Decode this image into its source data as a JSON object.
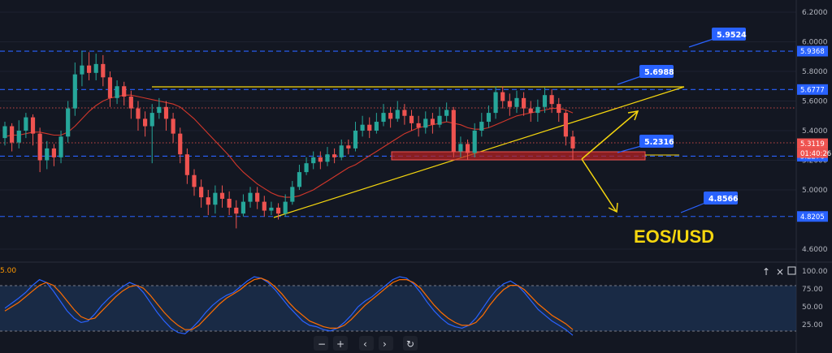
{
  "chart_data": [
    {
      "type": "candlestick",
      "title": "EOS/USD",
      "ylim": [
        4.53,
        6.25
      ],
      "y_ticks": [
        "6.2000",
        "6.0000",
        "5.8000",
        "5.6000",
        "5.4000",
        "5.2000",
        "5.0000",
        "4.6000"
      ],
      "price_badges": [
        {
          "value": "5.9368",
          "color": "#2962ff"
        },
        {
          "value": "5.6777",
          "color": "#2962ff"
        },
        {
          "value": "5.3119",
          "color": "#ef5350"
        },
        {
          "value": "5.2276",
          "color": "#2962ff"
        },
        {
          "value": "4.8205",
          "color": "#2962ff"
        }
      ],
      "countdown": "01:40:26",
      "callouts": [
        "5.9524",
        "5.6988",
        "5.2316",
        "4.8566"
      ],
      "horizontal_levels": [
        5.9368,
        5.6777,
        5.2276,
        4.8205
      ],
      "resistance_line": 5.6777,
      "candles": [
        [
          5.35,
          5.43,
          5.46,
          5.3
        ],
        [
          5.43,
          5.32,
          5.45,
          5.26
        ],
        [
          5.32,
          5.4,
          5.47,
          5.28
        ],
        [
          5.4,
          5.49,
          5.52,
          5.35
        ],
        [
          5.49,
          5.38,
          5.51,
          5.3
        ],
        [
          5.38,
          5.2,
          5.42,
          5.12
        ],
        [
          5.2,
          5.28,
          5.33,
          5.14
        ],
        [
          5.28,
          5.22,
          5.31,
          5.16
        ],
        [
          5.22,
          5.36,
          5.4,
          5.18
        ],
        [
          5.36,
          5.55,
          5.6,
          5.32
        ],
        [
          5.55,
          5.78,
          5.86,
          5.5
        ],
        [
          5.78,
          5.84,
          5.94,
          5.7
        ],
        [
          5.84,
          5.79,
          5.93,
          5.74
        ],
        [
          5.79,
          5.85,
          5.92,
          5.74
        ],
        [
          5.85,
          5.76,
          5.91,
          5.7
        ],
        [
          5.76,
          5.62,
          5.8,
          5.56
        ],
        [
          5.62,
          5.7,
          5.74,
          5.58
        ],
        [
          5.7,
          5.63,
          5.73,
          5.57
        ],
        [
          5.63,
          5.55,
          5.67,
          5.48
        ],
        [
          5.55,
          5.48,
          5.6,
          5.4
        ],
        [
          5.48,
          5.43,
          5.53,
          5.36
        ],
        [
          5.43,
          5.52,
          5.58,
          5.18
        ],
        [
          5.52,
          5.56,
          5.62,
          5.48
        ],
        [
          5.56,
          5.48,
          5.6,
          5.4
        ],
        [
          5.48,
          5.38,
          5.52,
          5.32
        ],
        [
          5.38,
          5.24,
          5.42,
          5.18
        ],
        [
          5.24,
          5.1,
          5.28,
          5.04
        ],
        [
          5.1,
          5.02,
          5.14,
          4.96
        ],
        [
          5.02,
          4.95,
          5.07,
          4.88
        ],
        [
          4.95,
          4.9,
          5.0,
          4.83
        ],
        [
          4.9,
          4.98,
          5.03,
          4.84
        ],
        [
          4.98,
          4.94,
          5.03,
          4.88
        ],
        [
          4.94,
          4.88,
          4.99,
          4.83
        ],
        [
          4.88,
          4.84,
          4.93,
          4.74
        ],
        [
          4.84,
          4.92,
          4.97,
          4.82
        ],
        [
          4.92,
          4.98,
          5.02,
          4.88
        ],
        [
          4.98,
          4.92,
          5.02,
          4.87
        ],
        [
          4.92,
          4.86,
          4.96,
          4.82
        ],
        [
          4.86,
          4.88,
          4.92,
          4.83
        ],
        [
          4.88,
          4.84,
          4.91,
          4.8
        ],
        [
          4.84,
          4.92,
          4.97,
          4.82
        ],
        [
          4.92,
          5.02,
          5.06,
          4.9
        ],
        [
          5.02,
          5.12,
          5.17,
          5.0
        ],
        [
          5.12,
          5.18,
          5.22,
          5.1
        ],
        [
          5.18,
          5.22,
          5.26,
          5.14
        ],
        [
          5.22,
          5.19,
          5.26,
          5.14
        ],
        [
          5.19,
          5.24,
          5.29,
          5.16
        ],
        [
          5.24,
          5.22,
          5.28,
          5.18
        ],
        [
          5.22,
          5.3,
          5.34,
          5.2
        ],
        [
          5.3,
          5.28,
          5.34,
          5.24
        ],
        [
          5.28,
          5.4,
          5.46,
          5.26
        ],
        [
          5.4,
          5.44,
          5.5,
          5.36
        ],
        [
          5.44,
          5.4,
          5.49,
          5.35
        ],
        [
          5.4,
          5.46,
          5.52,
          5.38
        ],
        [
          5.46,
          5.52,
          5.58,
          5.43
        ],
        [
          5.52,
          5.48,
          5.56,
          5.42
        ],
        [
          5.48,
          5.54,
          5.6,
          5.46
        ],
        [
          5.54,
          5.5,
          5.58,
          5.44
        ],
        [
          5.5,
          5.45,
          5.54,
          5.4
        ],
        [
          5.45,
          5.42,
          5.5,
          5.36
        ],
        [
          5.42,
          5.48,
          5.53,
          5.38
        ],
        [
          5.48,
          5.44,
          5.52,
          5.38
        ],
        [
          5.44,
          5.5,
          5.56,
          5.42
        ],
        [
          5.5,
          5.54,
          5.59,
          5.46
        ],
        [
          5.54,
          5.26,
          5.56,
          5.22
        ],
        [
          5.26,
          5.31,
          5.36,
          5.22
        ],
        [
          5.31,
          5.25,
          5.34,
          5.2
        ],
        [
          5.25,
          5.4,
          5.45,
          5.22
        ],
        [
          5.4,
          5.46,
          5.52,
          5.36
        ],
        [
          5.46,
          5.52,
          5.57,
          5.42
        ],
        [
          5.52,
          5.66,
          5.7,
          5.48
        ],
        [
          5.66,
          5.6,
          5.7,
          5.55
        ],
        [
          5.6,
          5.56,
          5.65,
          5.5
        ],
        [
          5.56,
          5.62,
          5.67,
          5.52
        ],
        [
          5.62,
          5.55,
          5.66,
          5.5
        ],
        [
          5.55,
          5.52,
          5.6,
          5.46
        ],
        [
          5.52,
          5.56,
          5.61,
          5.46
        ],
        [
          5.56,
          5.64,
          5.69,
          5.52
        ],
        [
          5.64,
          5.58,
          5.68,
          5.52
        ],
        [
          5.58,
          5.52,
          5.62,
          5.46
        ],
        [
          5.52,
          5.36,
          5.54,
          5.3
        ],
        [
          5.36,
          5.28,
          5.4,
          5.2
        ]
      ],
      "sma": [
        5.36,
        5.37,
        5.37,
        5.38,
        5.39,
        5.39,
        5.38,
        5.37,
        5.37,
        5.39,
        5.43,
        5.48,
        5.53,
        5.57,
        5.6,
        5.62,
        5.63,
        5.64,
        5.64,
        5.63,
        5.62,
        5.61,
        5.6,
        5.59,
        5.58,
        5.56,
        5.52,
        5.48,
        5.43,
        5.38,
        5.33,
        5.28,
        5.23,
        5.17,
        5.12,
        5.08,
        5.04,
        5.01,
        4.98,
        4.96,
        4.95,
        4.95,
        4.96,
        4.98,
        5.0,
        5.03,
        5.06,
        5.09,
        5.12,
        5.15,
        5.17,
        5.2,
        5.23,
        5.26,
        5.29,
        5.32,
        5.35,
        5.38,
        5.4,
        5.42,
        5.43,
        5.44,
        5.45,
        5.46,
        5.45,
        5.44,
        5.42,
        5.41,
        5.41,
        5.42,
        5.44,
        5.46,
        5.48,
        5.5,
        5.51,
        5.52,
        5.53,
        5.54,
        5.55,
        5.55,
        5.54,
        5.52
      ]
    },
    {
      "type": "line",
      "indicator_left_label": "5.00",
      "ylim": [
        0,
        100
      ],
      "y_ticks": [
        "100.00",
        "75.00",
        "50.00",
        "25.00"
      ],
      "bands": [
        80,
        20
      ],
      "series": [
        {
          "color": "#2962ff",
          "values": [
            48,
            55,
            62,
            70,
            80,
            88,
            84,
            72,
            58,
            44,
            34,
            28,
            30,
            40,
            52,
            62,
            70,
            78,
            84,
            80,
            70,
            56,
            42,
            30,
            20,
            14,
            12,
            20,
            30,
            42,
            52,
            60,
            66,
            70,
            78,
            86,
            92,
            90,
            84,
            74,
            62,
            50,
            40,
            30,
            24,
            22,
            18,
            16,
            20,
            28,
            38,
            50,
            58,
            64,
            72,
            80,
            88,
            92,
            90,
            82,
            70,
            56,
            44,
            34,
            26,
            22,
            20,
            24,
            34,
            48,
            62,
            74,
            82,
            86,
            80,
            70,
            58,
            46,
            38,
            30,
            24,
            18,
            10
          ]
        },
        {
          "color": "#ff6d00",
          "values": [
            44,
            50,
            56,
            64,
            72,
            80,
            84,
            80,
            70,
            58,
            46,
            36,
            32,
            34,
            44,
            54,
            64,
            72,
            78,
            80,
            76,
            66,
            54,
            42,
            32,
            24,
            18,
            18,
            24,
            34,
            44,
            54,
            62,
            68,
            74,
            82,
            88,
            90,
            86,
            78,
            68,
            56,
            46,
            38,
            30,
            26,
            22,
            20,
            20,
            24,
            32,
            42,
            52,
            60,
            68,
            76,
            84,
            88,
            88,
            84,
            76,
            64,
            52,
            42,
            34,
            28,
            24,
            24,
            28,
            38,
            52,
            64,
            74,
            80,
            80,
            74,
            64,
            54,
            46,
            38,
            32,
            26,
            18
          ]
        }
      ]
    }
  ],
  "controls": {
    "minus": "−",
    "plus": "+",
    "prev": "‹",
    "next": "›",
    "reset": "↻",
    "pin": "↑",
    "close": "×"
  }
}
